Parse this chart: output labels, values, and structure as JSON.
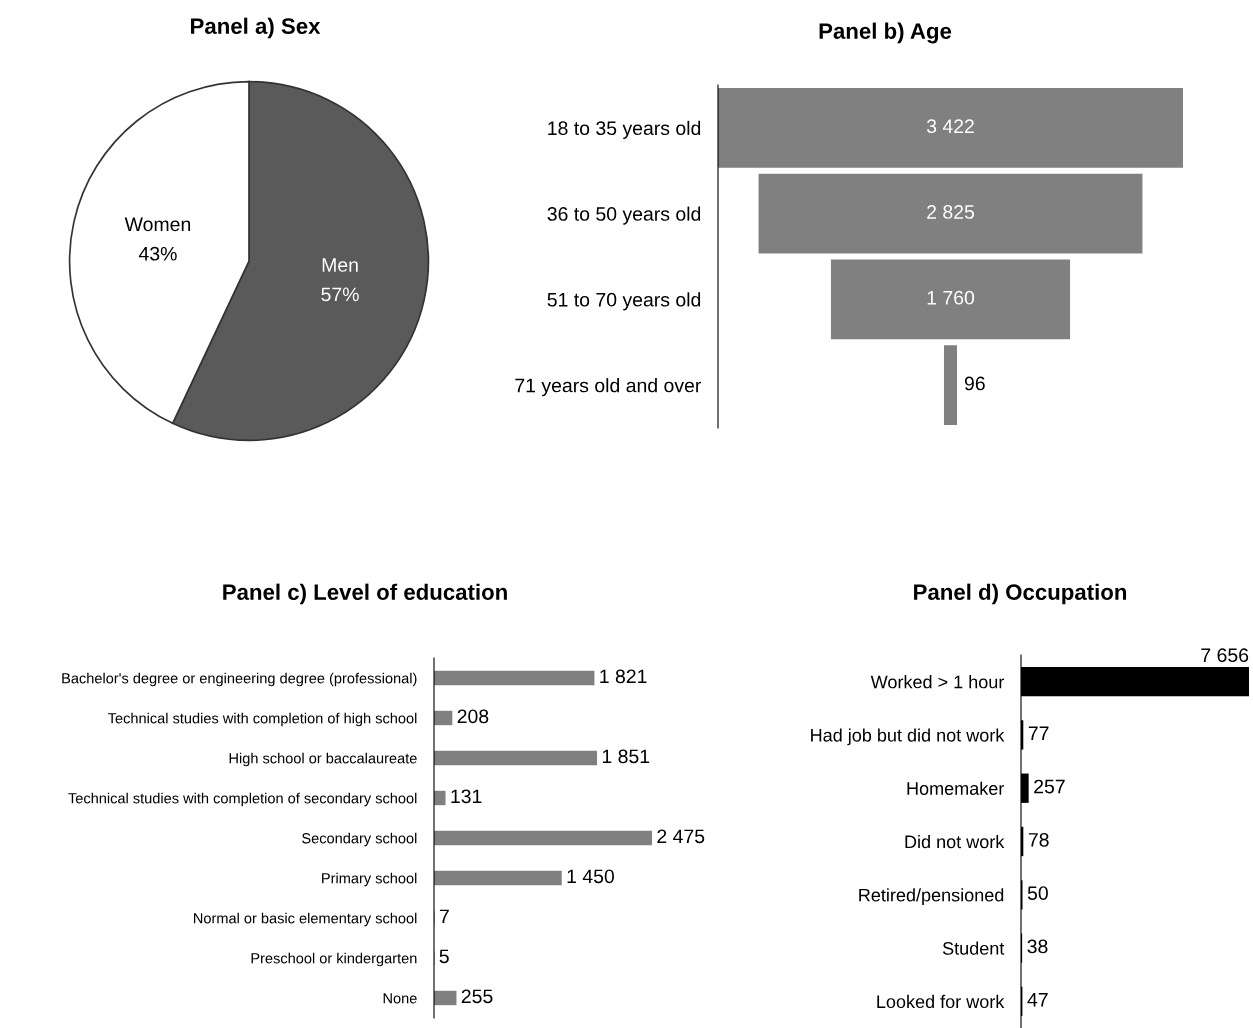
{
  "chart_data": [
    {
      "type": "pie",
      "title": "Panel a) Sex",
      "categories": [
        "Men",
        "Women"
      ],
      "values": [
        57,
        43
      ],
      "colors": [
        "#5a5a5a",
        "#ffffff"
      ],
      "value_labels": [
        "57%",
        "43%"
      ]
    },
    {
      "type": "other",
      "title": "Panel b) Age",
      "categories": [
        "18 to 35 years old",
        "36 to 50 years old",
        "51 to 70 years old",
        "71 years old and over"
      ],
      "values": [
        3422,
        2825,
        1760,
        96
      ],
      "value_labels": [
        "3 422",
        "2 825",
        "1 760",
        "96"
      ],
      "color": "#808080"
    },
    {
      "type": "bar",
      "orientation": "horizontal",
      "title": "Panel c) Level of education",
      "categories": [
        "Bachelor's degree or engineering degree (professional)",
        "Technical studies with completion of high school",
        "High school or baccalaureate",
        "Technical studies with completion of secondary school",
        "Secondary school",
        "Primary school",
        "Normal or basic elementary school",
        "Preschool or kindergarten",
        "None"
      ],
      "values": [
        1821,
        208,
        1851,
        131,
        2475,
        1450,
        7,
        5,
        255
      ],
      "value_labels": [
        "1 821",
        "208",
        "1 851",
        "131",
        "2 475",
        "1 450",
        "7",
        "5",
        "255"
      ],
      "color": "#808080"
    },
    {
      "type": "bar",
      "orientation": "horizontal",
      "title": "Panel d) Occupation",
      "categories": [
        "Worked > 1 hour",
        "Had job but did not work",
        "Homemaker",
        "Did not work",
        "Retired/pensioned",
        "Student",
        "Looked for work"
      ],
      "values": [
        7656,
        77,
        257,
        78,
        50,
        38,
        47
      ],
      "value_labels": [
        "7 656",
        "77",
        "257",
        "78",
        "50",
        "38",
        "47"
      ],
      "color": "#000000"
    }
  ]
}
